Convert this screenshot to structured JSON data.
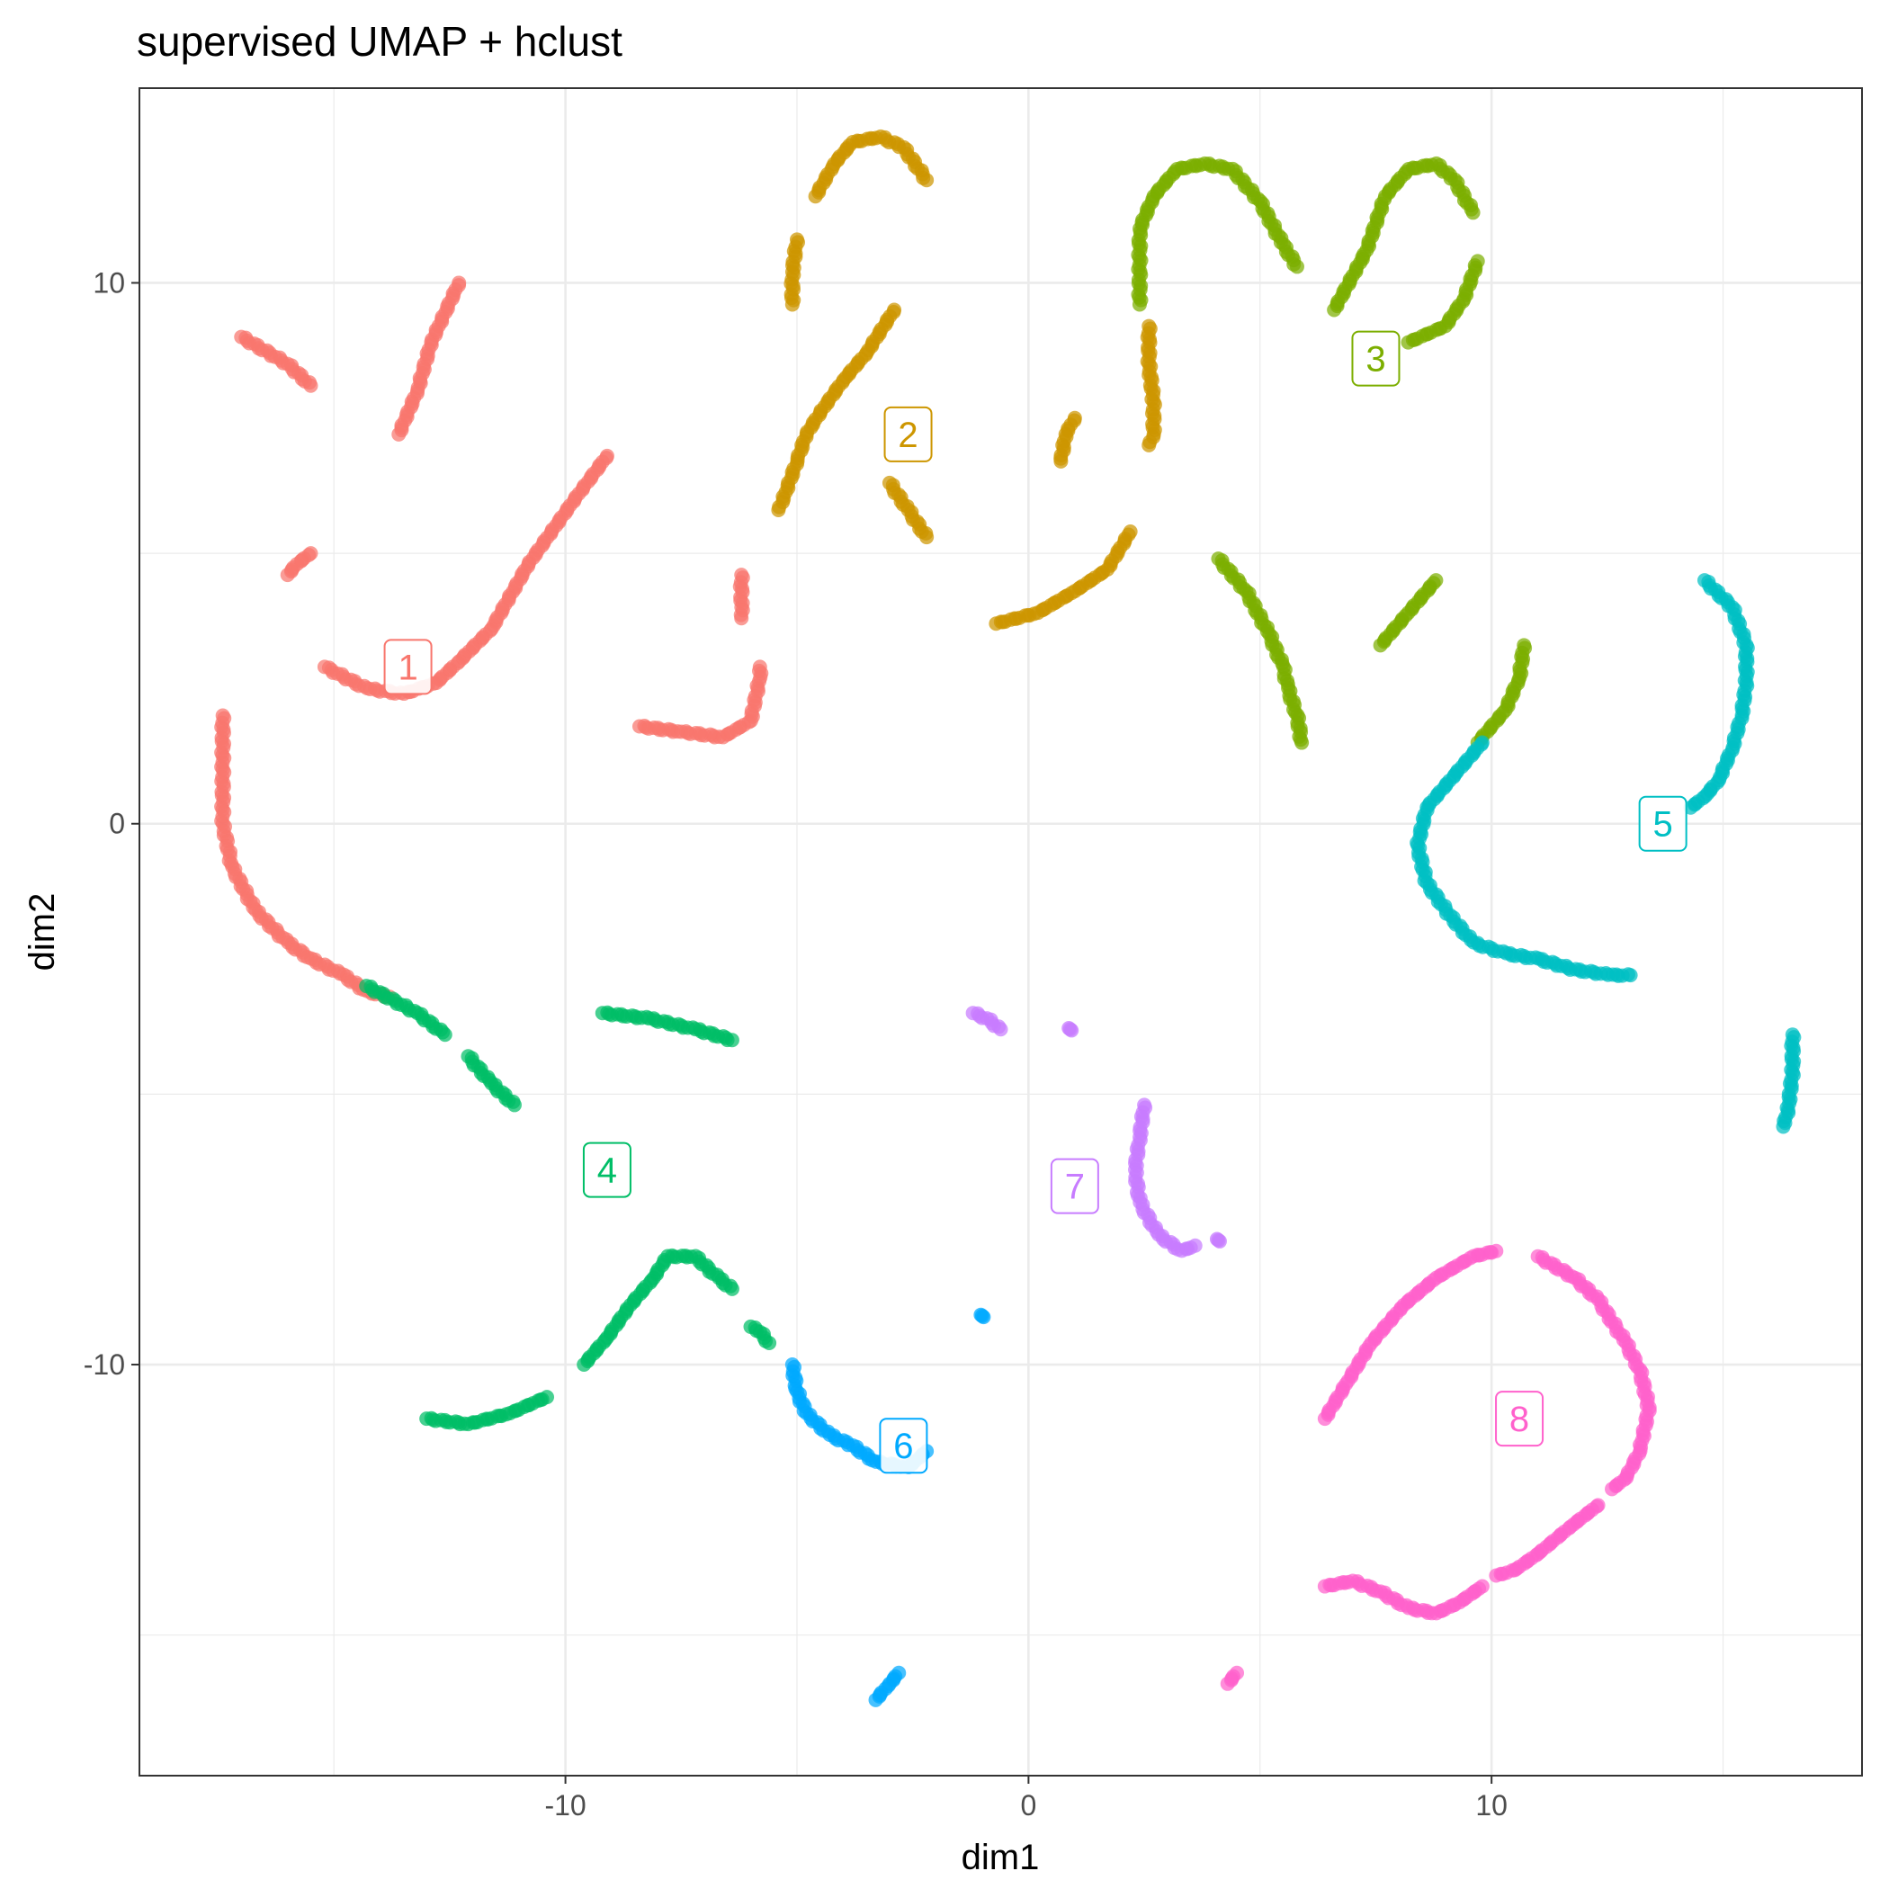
{
  "chart_data": {
    "type": "scatter",
    "title": "supervised UMAP + hclust",
    "xlabel": "dim1",
    "ylabel": "dim2",
    "xlim": [
      -19.2,
      18.0
    ],
    "ylim": [
      -17.6,
      13.6
    ],
    "x_ticks": [
      -10,
      0,
      10
    ],
    "y_ticks": [
      -10,
      0,
      10
    ],
    "x_tick_labels": [
      "-10",
      "0",
      "10"
    ],
    "y_tick_labels": [
      "-10",
      "0",
      "10"
    ],
    "grid": true,
    "legend": "none",
    "series": [
      {
        "name": "1",
        "color": "#F8766D",
        "label_pos": [
          -13.4,
          2.9
        ],
        "curves": [
          [
            [
              -17.0,
              9.0
            ],
            [
              -16.0,
              8.5
            ],
            [
              -15.5,
              8.1
            ]
          ],
          [
            [
              -12.3,
              10.0
            ],
            [
              -12.9,
              8.9
            ],
            [
              -13.2,
              8.0
            ],
            [
              -13.6,
              7.2
            ]
          ],
          [
            [
              -16.0,
              4.6
            ],
            [
              -15.8,
              4.8
            ],
            [
              -15.5,
              5.0
            ]
          ],
          [
            [
              -9.1,
              6.8
            ],
            [
              -9.8,
              6.0
            ],
            [
              -10.8,
              4.8
            ],
            [
              -11.6,
              3.6
            ],
            [
              -12.3,
              3.0
            ],
            [
              -12.8,
              2.6
            ],
            [
              -13.5,
              2.4
            ],
            [
              -14.3,
              2.5
            ],
            [
              -15.2,
              2.9
            ]
          ],
          [
            [
              -6.2,
              4.6
            ],
            [
              -6.2,
              4.0
            ],
            [
              -6.2,
              3.8
            ]
          ],
          [
            [
              -8.4,
              1.8
            ],
            [
              -7.5,
              1.7
            ],
            [
              -6.6,
              1.6
            ],
            [
              -6.0,
              1.9
            ],
            [
              -5.8,
              2.7
            ],
            [
              -5.8,
              2.9
            ]
          ],
          [
            [
              -17.4,
              2.0
            ],
            [
              -17.4,
              1.0
            ],
            [
              -17.4,
              0.0
            ],
            [
              -17.2,
              -0.8
            ],
            [
              -16.7,
              -1.6
            ],
            [
              -16.0,
              -2.2
            ],
            [
              -15.5,
              -2.5
            ],
            [
              -14.8,
              -2.8
            ],
            [
              -14.3,
              -3.1
            ],
            [
              -13.8,
              -3.2
            ]
          ]
        ]
      },
      {
        "name": "2",
        "color": "#CD9600",
        "label_pos": [
          -2.6,
          7.2
        ],
        "curves": [
          [
            [
              -4.6,
              11.6
            ],
            [
              -4.2,
              12.2
            ],
            [
              -3.8,
              12.6
            ],
            [
              -3.2,
              12.7
            ],
            [
              -2.7,
              12.5
            ],
            [
              -2.2,
              11.9
            ]
          ],
          [
            [
              -5.0,
              10.8
            ],
            [
              -5.1,
              10.2
            ],
            [
              -5.1,
              9.6
            ]
          ],
          [
            [
              -2.9,
              9.5
            ],
            [
              -3.5,
              8.7
            ],
            [
              -4.0,
              8.2
            ],
            [
              -4.5,
              7.6
            ],
            [
              -4.8,
              7.2
            ],
            [
              -5.0,
              6.7
            ],
            [
              -5.3,
              6.0
            ],
            [
              -5.4,
              5.8
            ]
          ],
          [
            [
              -3.0,
              6.3
            ],
            [
              -2.6,
              5.8
            ],
            [
              -2.2,
              5.3
            ]
          ],
          [
            [
              -0.7,
              3.7
            ],
            [
              0.2,
              3.9
            ],
            [
              1.0,
              4.3
            ],
            [
              1.7,
              4.7
            ],
            [
              2.2,
              5.4
            ]
          ],
          [
            [
              1.0,
              7.5
            ],
            [
              0.8,
              7.2
            ],
            [
              0.7,
              6.7
            ]
          ],
          [
            [
              2.6,
              9.2
            ],
            [
              2.6,
              8.5
            ],
            [
              2.7,
              7.8
            ],
            [
              2.7,
              7.2
            ],
            [
              2.6,
              7.0
            ]
          ]
        ]
      },
      {
        "name": "3",
        "color": "#7CAE00",
        "label_pos": [
          7.5,
          8.6
        ],
        "curves": [
          [
            [
              2.4,
              9.6
            ],
            [
              2.4,
              11.0
            ],
            [
              2.7,
              11.6
            ],
            [
              3.2,
              12.1
            ],
            [
              3.8,
              12.2
            ],
            [
              4.4,
              12.1
            ],
            [
              5.0,
              11.5
            ],
            [
              5.5,
              10.7
            ],
            [
              5.8,
              10.3
            ]
          ],
          [
            [
              6.6,
              9.5
            ],
            [
              7.3,
              10.6
            ],
            [
              7.7,
              11.6
            ],
            [
              8.2,
              12.1
            ],
            [
              8.8,
              12.2
            ],
            [
              9.2,
              11.9
            ],
            [
              9.6,
              11.3
            ]
          ],
          [
            [
              8.2,
              8.9
            ],
            [
              9.0,
              9.2
            ],
            [
              9.4,
              9.7
            ],
            [
              9.7,
              10.4
            ]
          ],
          [
            [
              4.1,
              4.9
            ],
            [
              4.7,
              4.3
            ],
            [
              5.2,
              3.5
            ],
            [
              5.5,
              2.9
            ],
            [
              5.6,
              2.5
            ],
            [
              5.8,
              2.0
            ],
            [
              5.9,
              1.5
            ]
          ],
          [
            [
              7.6,
              3.3
            ],
            [
              8.2,
              3.9
            ],
            [
              8.8,
              4.5
            ]
          ],
          [
            [
              9.7,
              1.5
            ],
            [
              10.3,
              2.1
            ],
            [
              10.6,
              2.7
            ],
            [
              10.7,
              3.3
            ]
          ]
        ]
      },
      {
        "name": "4",
        "color": "#00BE67",
        "label_pos": [
          -9.1,
          -6.4
        ],
        "curves": [
          [
            [
              -14.3,
              -3.0
            ],
            [
              -13.2,
              -3.5
            ],
            [
              -12.6,
              -3.9
            ]
          ],
          [
            [
              -12.1,
              -4.3
            ],
            [
              -11.6,
              -4.8
            ],
            [
              -11.1,
              -5.2
            ]
          ],
          [
            [
              -9.2,
              -3.5
            ],
            [
              -8.2,
              -3.6
            ],
            [
              -7.2,
              -3.8
            ],
            [
              -6.4,
              -4.0
            ]
          ],
          [
            [
              -13.0,
              -11.0
            ],
            [
              -12.1,
              -11.1
            ],
            [
              -11.2,
              -10.9
            ],
            [
              -10.4,
              -10.6
            ]
          ],
          [
            [
              -9.6,
              -10.0
            ],
            [
              -9.1,
              -9.5
            ],
            [
              -8.6,
              -8.9
            ],
            [
              -8.1,
              -8.4
            ],
            [
              -7.8,
              -8.0
            ],
            [
              -7.2,
              -8.0
            ],
            [
              -6.7,
              -8.4
            ],
            [
              -6.4,
              -8.6
            ]
          ],
          [
            [
              -6.0,
              -9.3
            ],
            [
              -5.8,
              -9.4
            ],
            [
              -5.6,
              -9.6
            ]
          ]
        ]
      },
      {
        "name": "5",
        "color": "#00BFC4",
        "label_pos": [
          13.7,
          0.0
        ],
        "curves": [
          [
            [
              9.8,
              1.5
            ],
            [
              9.2,
              0.9
            ],
            [
              8.6,
              0.3
            ],
            [
              8.4,
              -0.4
            ],
            [
              8.6,
              -1.1
            ],
            [
              9.1,
              -1.7
            ],
            [
              9.6,
              -2.2
            ],
            [
              10.3,
              -2.4
            ],
            [
              11.0,
              -2.5
            ],
            [
              11.8,
              -2.7
            ],
            [
              12.6,
              -2.8
            ],
            [
              13.0,
              -2.8
            ]
          ],
          [
            [
              14.6,
              4.5
            ],
            [
              15.2,
              4.0
            ],
            [
              15.5,
              3.3
            ],
            [
              15.5,
              2.6
            ],
            [
              15.4,
              2.0
            ],
            [
              15.2,
              1.4
            ],
            [
              14.9,
              0.8
            ],
            [
              14.6,
              0.5
            ],
            [
              14.3,
              0.3
            ]
          ],
          [
            [
              16.5,
              -3.9
            ],
            [
              16.5,
              -4.6
            ],
            [
              16.4,
              -5.3
            ],
            [
              16.3,
              -5.6
            ]
          ]
        ]
      },
      {
        "name": "6",
        "color": "#00A9FF",
        "label_pos": [
          -2.7,
          -11.5
        ],
        "curves": [
          [
            [
              -5.1,
              -10.0
            ],
            [
              -5.0,
              -10.5
            ],
            [
              -4.8,
              -10.9
            ],
            [
              -4.3,
              -11.3
            ],
            [
              -3.8,
              -11.5
            ],
            [
              -3.3,
              -11.8
            ],
            [
              -2.6,
              -11.9
            ],
            [
              -2.2,
              -11.6
            ]
          ],
          [
            [
              -1.0,
              -9.1
            ]
          ],
          [
            [
              -3.3,
              -16.2
            ],
            [
              -3.0,
              -15.9
            ],
            [
              -2.8,
              -15.7
            ]
          ]
        ]
      },
      {
        "name": "7",
        "color": "#C77CFF",
        "label_pos": [
          1.0,
          -6.7
        ],
        "curves": [
          [
            [
              -1.2,
              -3.5
            ],
            [
              -0.9,
              -3.6
            ],
            [
              -0.6,
              -3.8
            ]
          ],
          [
            [
              0.9,
              -3.8
            ]
          ],
          [
            [
              2.5,
              -5.2
            ],
            [
              2.4,
              -5.8
            ],
            [
              2.3,
              -6.4
            ],
            [
              2.4,
              -7.0
            ],
            [
              2.8,
              -7.6
            ],
            [
              3.3,
              -7.9
            ],
            [
              3.6,
              -7.8
            ]
          ],
          [
            [
              4.1,
              -7.7
            ]
          ]
        ]
      },
      {
        "name": "8",
        "color": "#FF61CC",
        "label_pos": [
          10.6,
          -11.0
        ],
        "curves": [
          [
            [
              6.4,
              -11.0
            ],
            [
              6.9,
              -10.3
            ],
            [
              7.4,
              -9.6
            ],
            [
              8.1,
              -8.9
            ],
            [
              8.8,
              -8.4
            ],
            [
              9.6,
              -8.0
            ],
            [
              10.1,
              -7.9
            ]
          ],
          [
            [
              11.0,
              -8.0
            ],
            [
              11.8,
              -8.4
            ],
            [
              12.3,
              -8.8
            ],
            [
              12.9,
              -9.6
            ],
            [
              13.2,
              -10.1
            ],
            [
              13.4,
              -10.8
            ],
            [
              13.2,
              -11.6
            ],
            [
              12.9,
              -12.1
            ],
            [
              12.6,
              -12.3
            ]
          ],
          [
            [
              12.3,
              -12.6
            ],
            [
              11.7,
              -13.0
            ],
            [
              11.0,
              -13.5
            ],
            [
              10.5,
              -13.8
            ],
            [
              10.1,
              -13.9
            ]
          ],
          [
            [
              6.4,
              -14.1
            ],
            [
              7.0,
              -14.0
            ],
            [
              7.6,
              -14.2
            ],
            [
              8.2,
              -14.5
            ],
            [
              8.8,
              -14.6
            ],
            [
              9.3,
              -14.4
            ],
            [
              9.8,
              -14.1
            ]
          ],
          [
            [
              4.3,
              -15.9
            ],
            [
              4.5,
              -15.7
            ]
          ]
        ]
      }
    ]
  }
}
